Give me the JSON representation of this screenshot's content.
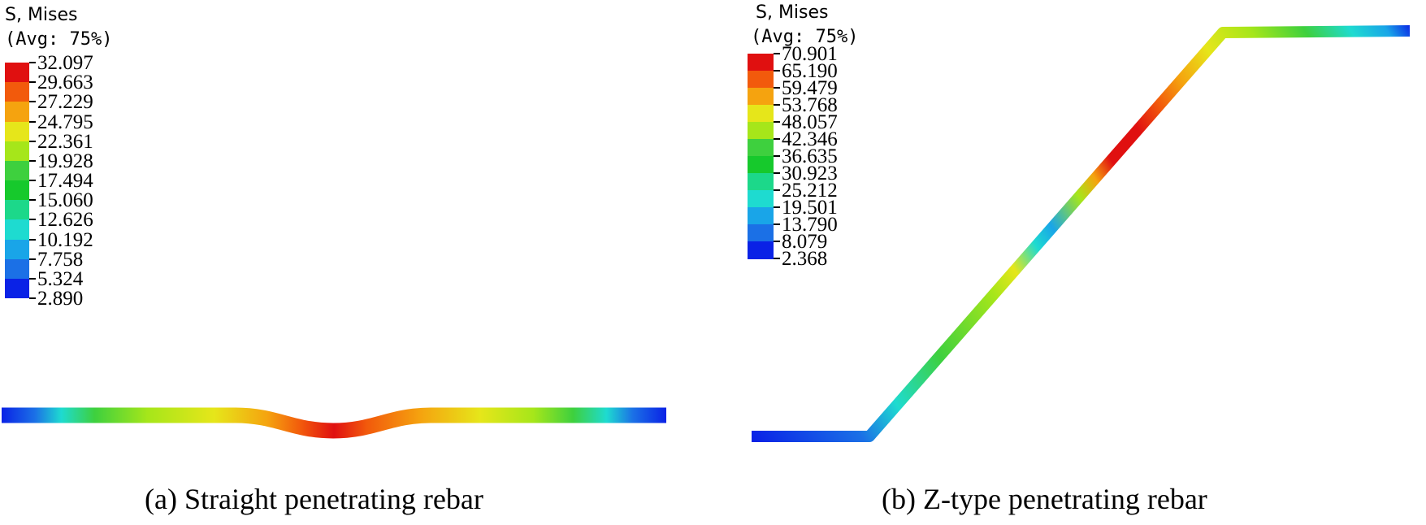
{
  "panels": [
    {
      "id": "a",
      "legend": {
        "title_line1": "S, Mises",
        "title_line2": "(Avg: 75%)",
        "values": [
          "32.097",
          "29.663",
          "27.229",
          "24.795",
          "22.361",
          "19.928",
          "17.494",
          "15.060",
          "12.626",
          "10.192",
          "7.758",
          "5.324",
          "2.890"
        ],
        "colors": [
          "#e01010",
          "#f25a0c",
          "#f5a30f",
          "#e6e61a",
          "#a6e61a",
          "#3ed03e",
          "#16c92c",
          "#1cd88a",
          "#1edbd0",
          "#19a5e8",
          "#1b70e6",
          "#0a22e6"
        ]
      },
      "caption": "(a) Straight penetrating rebar"
    },
    {
      "id": "b",
      "legend": {
        "title_line1": "S, Mises",
        "title_line2": "(Avg: 75%)",
        "values": [
          "70.901",
          "65.190",
          "59.479",
          "53.768",
          "48.057",
          "42.346",
          "36.635",
          "30.923",
          "25.212",
          "19.501",
          "13.790",
          "8.079",
          "2.368"
        ],
        "colors": [
          "#e01010",
          "#f25a0c",
          "#f5a30f",
          "#e6e61a",
          "#a6e61a",
          "#3ed03e",
          "#16c92c",
          "#1cd88a",
          "#1edbd0",
          "#19a5e8",
          "#1b70e6",
          "#0a22e6"
        ]
      },
      "caption": "(b) Z-type penetrating rebar"
    }
  ]
}
